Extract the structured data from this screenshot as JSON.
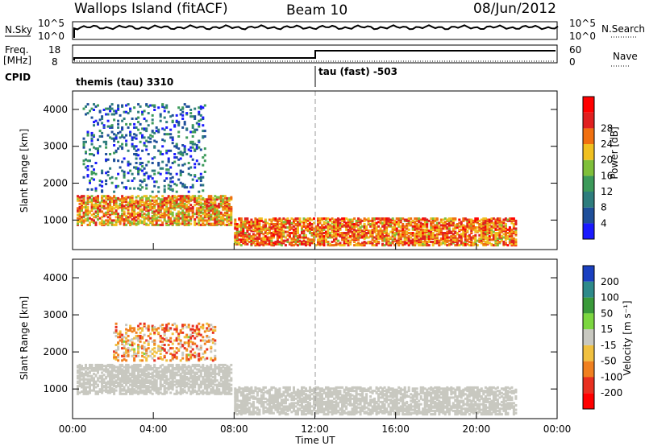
{
  "header": {
    "station": "Wallops Island (fitACF)",
    "beam": "Beam 10",
    "date": "08/Jun/2012"
  },
  "strip": {
    "nsky_label": "N.Sky",
    "nsky_ticks": [
      "10^5",
      "10^0"
    ],
    "nsearch_label": "N.Search",
    "nsearch_ticks": [
      "10^5",
      "10^0"
    ],
    "freq_label": "Freq.",
    "freq_unit": "[MHz]",
    "freq_ticks": [
      "18",
      "8"
    ],
    "nave_label": "Nave",
    "nave_ticks": [
      "60",
      "0"
    ],
    "cpid_label": "CPID",
    "cpid_modes": [
      "themis (tau) 3310",
      "tau (fast) -503"
    ]
  },
  "x_axis": {
    "label": "Time UT",
    "ticks": [
      "00:00",
      "04:00",
      "08:00",
      "12:00",
      "16:00",
      "20:00",
      "00:00"
    ]
  },
  "chart_data": [
    {
      "type": "heatmap",
      "panel": "power",
      "ylabel": "Slant Range [km]",
      "y_ticks": [
        "1000",
        "2000",
        "3000",
        "4000"
      ],
      "ylim": [
        200,
        4500
      ],
      "xlim": [
        0,
        24
      ],
      "colorbar_label": "Power [dB]",
      "colorbar_ticks": [
        "4",
        "8",
        "12",
        "16",
        "20",
        "24",
        "28"
      ],
      "colorbar_colors": [
        "#1a1aff",
        "#1f4f9a",
        "#2e7d7d",
        "#3c9a5a",
        "#7fbf3a",
        "#f0c020",
        "#f07010",
        "#e02020",
        "#ff0000"
      ],
      "regions": [
        {
          "t0": 0.2,
          "t1": 7.8,
          "r0": 900,
          "r1": 1700,
          "level": 24
        },
        {
          "t0": 8.0,
          "t1": 22.0,
          "r0": 350,
          "r1": 1100,
          "level": 26
        },
        {
          "t0": 0.5,
          "t1": 6.5,
          "r0": 1800,
          "r1": 4200,
          "level": 8
        }
      ]
    },
    {
      "type": "heatmap",
      "panel": "velocity",
      "ylabel": "Slant Range [km]",
      "y_ticks": [
        "1000",
        "2000",
        "3000",
        "4000"
      ],
      "ylim": [
        200,
        4500
      ],
      "xlim": [
        0,
        24
      ],
      "colorbar_label": "Velocity [m s⁻¹]",
      "colorbar_ticks": [
        "200",
        "100",
        "50",
        "15",
        "-15",
        "-50",
        "-100",
        "-200"
      ],
      "colorbar_colors": [
        "#1a40c0",
        "#2e8a8a",
        "#3a9a3a",
        "#7cd640",
        "#c8c8c0",
        "#f0c040",
        "#f08020",
        "#e83020",
        "#ff0000"
      ],
      "regions": [
        {
          "t0": 0.2,
          "t1": 7.8,
          "r0": 900,
          "r1": 1700,
          "level": 0
        },
        {
          "t0": 8.0,
          "t1": 22.0,
          "r0": 350,
          "r1": 1100,
          "level": 0
        },
        {
          "t0": 2.0,
          "t1": 7.0,
          "r0": 1800,
          "r1": 2800,
          "level": -60
        }
      ]
    }
  ]
}
